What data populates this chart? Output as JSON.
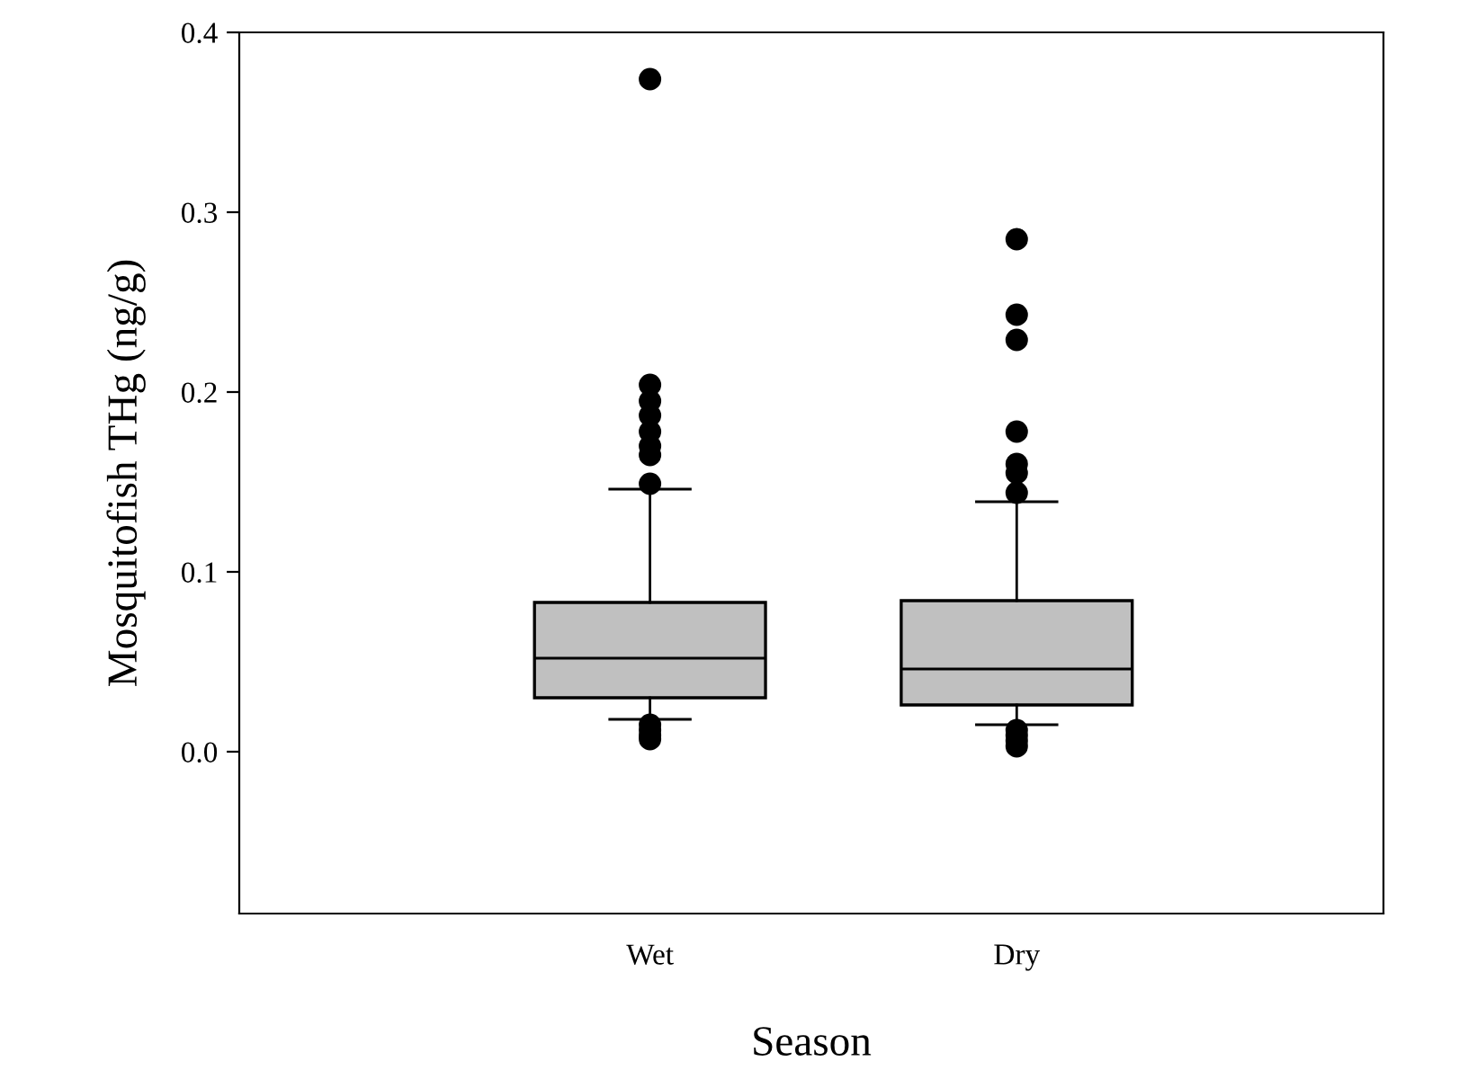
{
  "chart_data": {
    "type": "box",
    "xlabel": "Season",
    "ylabel": "Mosquitofish THg (ng/g)",
    "categories": [
      "Wet",
      "Dry"
    ],
    "ylim": [
      -0.09,
      0.4
    ],
    "yticks": [
      {
        "value": 0,
        "label": "0.0"
      },
      0.1,
      0.2,
      0.3,
      0.4
    ],
    "grid": false,
    "series": [
      {
        "color": "#c0c0c0",
        "boxes": [
          {
            "low": 0.018,
            "q1": 0.03,
            "median": 0.052,
            "q3": 0.083,
            "high": 0.146,
            "outliers": [
              0.374,
              0.204,
              0.195,
              0.187,
              0.178,
              0.17,
              0.165,
              0.149,
              0.015,
              0.012,
              0.009,
              0.007
            ]
          },
          {
            "low": 0.015,
            "q1": 0.026,
            "median": 0.046,
            "q3": 0.084,
            "high": 0.139,
            "outliers": [
              0.285,
              0.243,
              0.229,
              0.178,
              0.16,
              0.155,
              0.144,
              0.012,
              0.009,
              0.006,
              0.003
            ]
          }
        ]
      }
    ]
  }
}
